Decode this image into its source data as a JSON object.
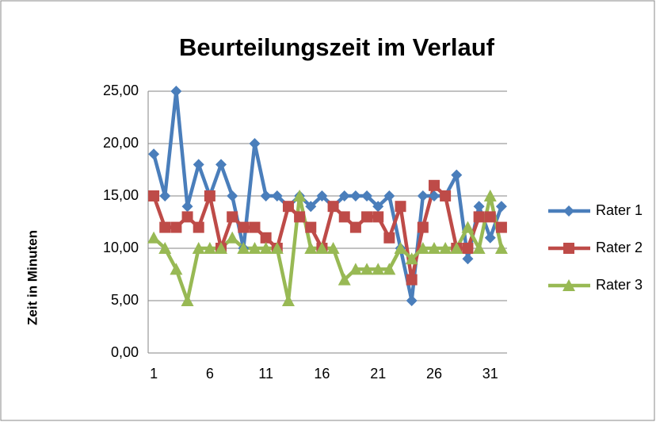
{
  "chart_data": {
    "type": "line",
    "title": "Beurteilungszeit im Verlauf",
    "y_label": "Zeit in Minuten",
    "categories": [
      1,
      null,
      null,
      null,
      null,
      6,
      null,
      null,
      null,
      null,
      11,
      null,
      null,
      null,
      null,
      16,
      null,
      null,
      null,
      null,
      21,
      null,
      null,
      null,
      null,
      26,
      null,
      null,
      null,
      null,
      31,
      null
    ],
    "series": [
      {
        "name": "Rater 1",
        "color": "#4a7ebb",
        "marker": "diamond",
        "values": [
          19,
          15,
          25,
          14,
          18,
          15,
          18,
          15,
          10,
          20,
          15,
          15,
          14,
          15,
          14,
          15,
          14,
          15,
          15,
          15,
          14,
          15,
          10,
          5,
          15,
          15,
          15,
          17,
          9,
          14,
          11,
          14
        ]
      },
      {
        "name": "Rater 2",
        "color": "#be4b48",
        "marker": "square",
        "values": [
          15,
          12,
          12,
          13,
          12,
          15,
          10,
          13,
          12,
          12,
          11,
          10,
          14,
          13,
          12,
          10,
          14,
          13,
          12,
          13,
          13,
          11,
          14,
          7,
          12,
          16,
          15,
          10,
          10,
          13,
          13,
          12
        ]
      },
      {
        "name": "Rater 3",
        "color": "#98b954",
        "marker": "triangle",
        "values": [
          11,
          10,
          8,
          5,
          10,
          10,
          10,
          11,
          10,
          10,
          10,
          10,
          5,
          15,
          10,
          10,
          10,
          7,
          8,
          8,
          8,
          8,
          10,
          9,
          10,
          10,
          10,
          10,
          12,
          10,
          15,
          10
        ]
      }
    ],
    "ylim": [
      0,
      25
    ],
    "yticks": [
      {
        "value": 0,
        "label": "0,00"
      },
      {
        "value": 5,
        "label": "5,00"
      },
      {
        "value": 10,
        "label": "10,00"
      },
      {
        "value": 15,
        "label": "15,00"
      },
      {
        "value": 20,
        "label": "20,00"
      },
      {
        "value": 25,
        "label": "25,00"
      }
    ],
    "grid": true,
    "legend": "right"
  }
}
